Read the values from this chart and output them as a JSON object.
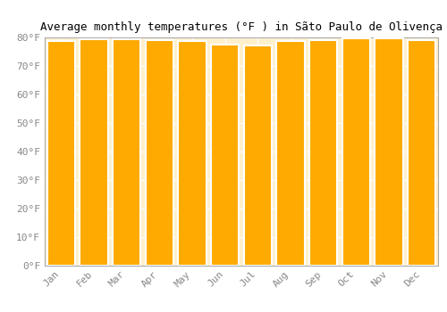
{
  "title": "Average monthly temperatures (°F ) in Sãto Paulo de Olivença",
  "months": [
    "Jan",
    "Feb",
    "Mar",
    "Apr",
    "May",
    "Jun",
    "Jul",
    "Aug",
    "Sep",
    "Oct",
    "Nov",
    "Dec"
  ],
  "values": [
    78.8,
    79.5,
    79.3,
    79.2,
    78.6,
    77.4,
    77.2,
    78.6,
    79.2,
    79.7,
    79.7,
    79.2
  ],
  "bar_color": "#FFAA00",
  "bar_edge_color": "#FFAA00",
  "ylim": [
    0,
    80
  ],
  "yticks": [
    0,
    10,
    20,
    30,
    40,
    50,
    60,
    70,
    80
  ],
  "ytick_labels": [
    "0°F",
    "10°F",
    "20°F",
    "30°F",
    "40°F",
    "50°F",
    "60°F",
    "70°F",
    "80°F"
  ],
  "background_color": "#ffffff",
  "plot_bg_color": "#FFF0CC",
  "grid_color": "#ffffff",
  "title_fontsize": 9,
  "tick_fontsize": 8,
  "bar_width": 0.85
}
